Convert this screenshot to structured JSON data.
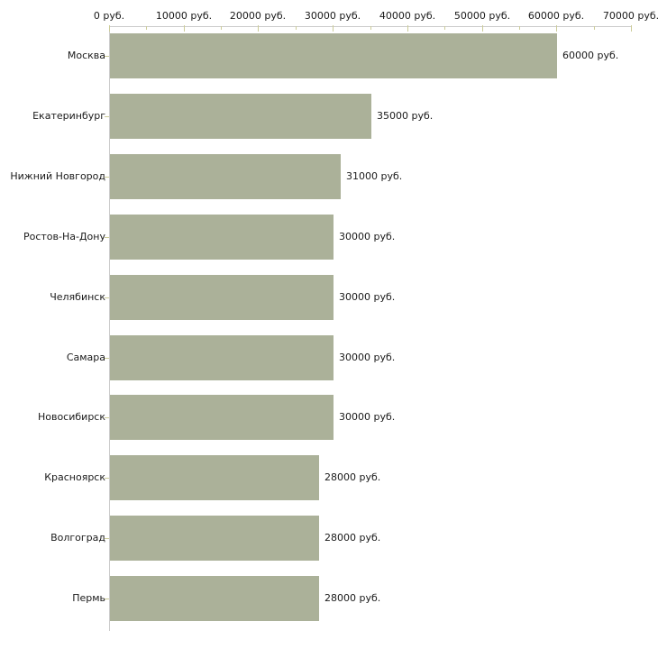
{
  "chart_data": {
    "type": "bar",
    "orientation": "horizontal",
    "title": "",
    "categories": [
      "Москва",
      "Екатеринбург",
      "Нижний Новгород",
      "Ростов-На-Дону",
      "Челябинск",
      "Самара",
      "Новосибирск",
      "Красноярск",
      "Волгоград",
      "Пермь"
    ],
    "values": [
      60000,
      35000,
      31000,
      30000,
      30000,
      30000,
      30000,
      28000,
      28000,
      28000
    ],
    "value_labels": [
      "60000 руб.",
      "35000 руб.",
      "31000 руб.",
      "30000 руб.",
      "30000 руб.",
      "30000 руб.",
      "30000 руб.",
      "28000 руб.",
      "28000 руб.",
      "28000 руб."
    ],
    "x_axis": {
      "position": "top",
      "tick_labels": [
        "0 руб.",
        "10000 руб.",
        "20000 руб.",
        "30000 руб.",
        "40000 руб.",
        "50000 руб.",
        "60000 руб.",
        "70000 руб."
      ],
      "tick_values": [
        0,
        10000,
        20000,
        30000,
        40000,
        50000,
        60000,
        70000
      ],
      "minor_tick_step": 5000,
      "xlim": [
        0,
        70000
      ]
    },
    "unit": "руб.",
    "grid": false,
    "legend": false,
    "colors": {
      "bar": "#abb199",
      "axis_line": "#cccccc",
      "tick_mark": "#cccc99",
      "text": "#1a1a1a",
      "background": "#ffffff"
    }
  }
}
